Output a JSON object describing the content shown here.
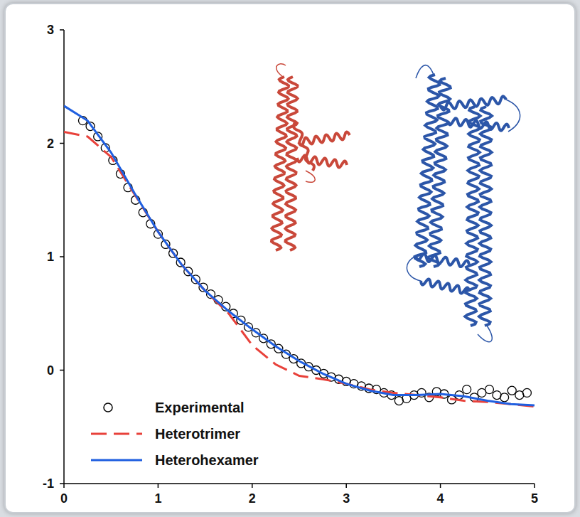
{
  "chart_data": {
    "type": "line",
    "xlim": [
      0,
      5
    ],
    "xticks": [
      0,
      1,
      2,
      3,
      4,
      5
    ],
    "ylim": [
      -1,
      3
    ],
    "yticks": [
      -1,
      0,
      1,
      2,
      3
    ],
    "grid": false,
    "legend": "lower left",
    "series": [
      {
        "name": "Experimental",
        "type": "scatter",
        "marker": "circle",
        "color": "#000000",
        "x": [
          0.2,
          0.28,
          0.36,
          0.44,
          0.52,
          0.6,
          0.68,
          0.76,
          0.84,
          0.92,
          1.0,
          1.08,
          1.16,
          1.24,
          1.32,
          1.4,
          1.48,
          1.56,
          1.64,
          1.72,
          1.8,
          1.88,
          1.96,
          2.04,
          2.12,
          2.2,
          2.28,
          2.36,
          2.44,
          2.52,
          2.6,
          2.68,
          2.76,
          2.84,
          2.92,
          3.0,
          3.08,
          3.16,
          3.24,
          3.32,
          3.4,
          3.48,
          3.56,
          3.64,
          3.72,
          3.8,
          3.88,
          3.96,
          4.04,
          4.12,
          4.2,
          4.28,
          4.36,
          4.44,
          4.52,
          4.6,
          4.68,
          4.76,
          4.84,
          4.92
        ],
        "values": [
          2.2,
          2.15,
          2.06,
          1.96,
          1.85,
          1.73,
          1.61,
          1.5,
          1.39,
          1.29,
          1.2,
          1.11,
          1.03,
          0.95,
          0.87,
          0.8,
          0.73,
          0.67,
          0.62,
          0.56,
          0.5,
          0.44,
          0.38,
          0.33,
          0.28,
          0.23,
          0.19,
          0.14,
          0.1,
          0.06,
          0.03,
          0.0,
          -0.03,
          -0.06,
          -0.08,
          -0.1,
          -0.12,
          -0.14,
          -0.16,
          -0.17,
          -0.2,
          -0.22,
          -0.27,
          -0.25,
          -0.22,
          -0.2,
          -0.24,
          -0.19,
          -0.21,
          -0.26,
          -0.22,
          -0.17,
          -0.24,
          -0.2,
          -0.17,
          -0.22,
          -0.24,
          -0.18,
          -0.22,
          -0.2
        ]
      },
      {
        "name": "Heterotrimer",
        "type": "line",
        "line_style": "dashed",
        "color": "#e8413a",
        "x": [
          0,
          0.25,
          0.5,
          0.75,
          1.0,
          1.25,
          1.5,
          1.75,
          2.0,
          2.25,
          2.5,
          2.75,
          3.0,
          3.25,
          3.5,
          3.75,
          4.0,
          4.25,
          4.5,
          4.75,
          5.0
        ],
        "values": [
          2.1,
          2.06,
          1.88,
          1.55,
          1.22,
          0.93,
          0.7,
          0.5,
          0.22,
          0.05,
          -0.05,
          -0.08,
          -0.12,
          -0.17,
          -0.2,
          -0.22,
          -0.24,
          -0.27,
          -0.28,
          -0.3,
          -0.32
        ]
      },
      {
        "name": "Heterohexamer",
        "type": "line",
        "line_style": "solid",
        "color": "#1f5fe0",
        "x": [
          0,
          0.25,
          0.5,
          0.75,
          1.0,
          1.25,
          1.5,
          1.75,
          2.0,
          2.25,
          2.5,
          2.75,
          3.0,
          3.25,
          3.5,
          3.75,
          4.0,
          4.25,
          4.5,
          4.75,
          5.0
        ],
        "values": [
          2.33,
          2.2,
          1.92,
          1.56,
          1.22,
          0.93,
          0.7,
          0.52,
          0.36,
          0.21,
          0.08,
          -0.03,
          -0.12,
          -0.18,
          -0.22,
          -0.22,
          -0.21,
          -0.23,
          -0.27,
          -0.3,
          -0.31
        ]
      }
    ]
  }
}
